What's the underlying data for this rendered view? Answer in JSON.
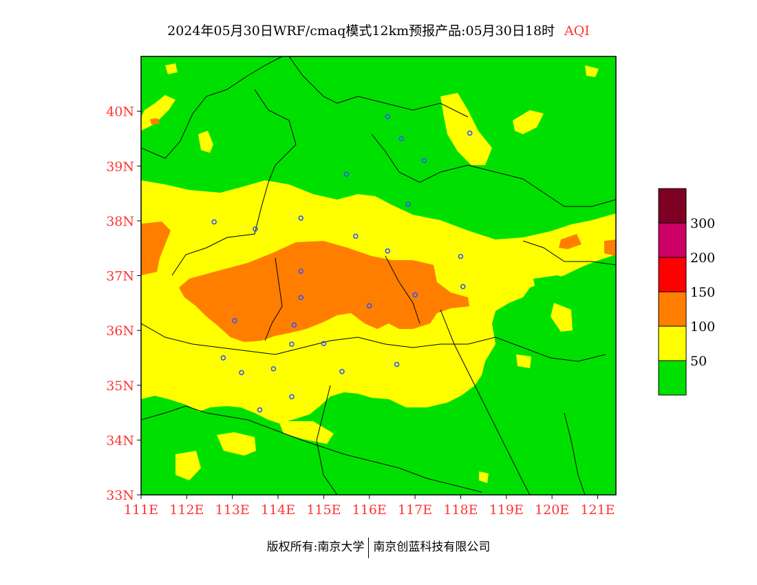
{
  "title": {
    "main": "2024年05月30日WRF/cmaq模式12km预报产品:05月30日18时",
    "product": "AQI"
  },
  "footer": {
    "copyright_label": "版权所有:南京大学",
    "partner": "南京创蓝科技有限公司"
  },
  "map": {
    "lon_range": [
      111,
      121.4
    ],
    "lat_range": [
      33,
      41
    ],
    "lon_ticks": [
      "111E",
      "112E",
      "113E",
      "114E",
      "115E",
      "116E",
      "117E",
      "118E",
      "119E",
      "120E",
      "121E"
    ],
    "lat_ticks": [
      "33N",
      "34N",
      "35N",
      "36N",
      "37N",
      "38N",
      "39N",
      "40N"
    ]
  },
  "legend": {
    "colors": [
      "#00e000",
      "#ffff00",
      "#ff7e00",
      "#ff0000",
      "#cc0066",
      "#7e0023"
    ],
    "labels": [
      "50",
      "100",
      "150",
      "200",
      "300"
    ]
  },
  "colors": {
    "good": "#00e000",
    "moderate": "#ffff00",
    "sensitive": "#ff7e00",
    "axis_label": "#ff3333",
    "station": "#3355ff"
  },
  "stations": [
    {
      "lon": 116.4,
      "lat": 39.9
    },
    {
      "lon": 116.7,
      "lat": 39.5
    },
    {
      "lon": 117.2,
      "lat": 39.1
    },
    {
      "lon": 118.2,
      "lat": 39.6
    },
    {
      "lon": 115.5,
      "lat": 38.85
    },
    {
      "lon": 116.85,
      "lat": 38.3
    },
    {
      "lon": 112.6,
      "lat": 37.98
    },
    {
      "lon": 113.5,
      "lat": 37.85
    },
    {
      "lon": 114.5,
      "lat": 38.05
    },
    {
      "lon": 115.7,
      "lat": 37.72
    },
    {
      "lon": 116.4,
      "lat": 37.45
    },
    {
      "lon": 118.0,
      "lat": 37.35
    },
    {
      "lon": 114.5,
      "lat": 37.08
    },
    {
      "lon": 114.5,
      "lat": 36.6
    },
    {
      "lon": 117.0,
      "lat": 36.65
    },
    {
      "lon": 118.05,
      "lat": 36.8
    },
    {
      "lon": 116.0,
      "lat": 36.45
    },
    {
      "lon": 113.05,
      "lat": 36.18
    },
    {
      "lon": 114.35,
      "lat": 36.1
    },
    {
      "lon": 114.3,
      "lat": 35.75
    },
    {
      "lon": 115.0,
      "lat": 35.76
    },
    {
      "lon": 112.8,
      "lat": 35.5
    },
    {
      "lon": 113.2,
      "lat": 35.23
    },
    {
      "lon": 113.9,
      "lat": 35.3
    },
    {
      "lon": 115.4,
      "lat": 35.25
    },
    {
      "lon": 116.6,
      "lat": 35.38
    },
    {
      "lon": 114.3,
      "lat": 34.79
    },
    {
      "lon": 113.6,
      "lat": 34.55
    }
  ]
}
